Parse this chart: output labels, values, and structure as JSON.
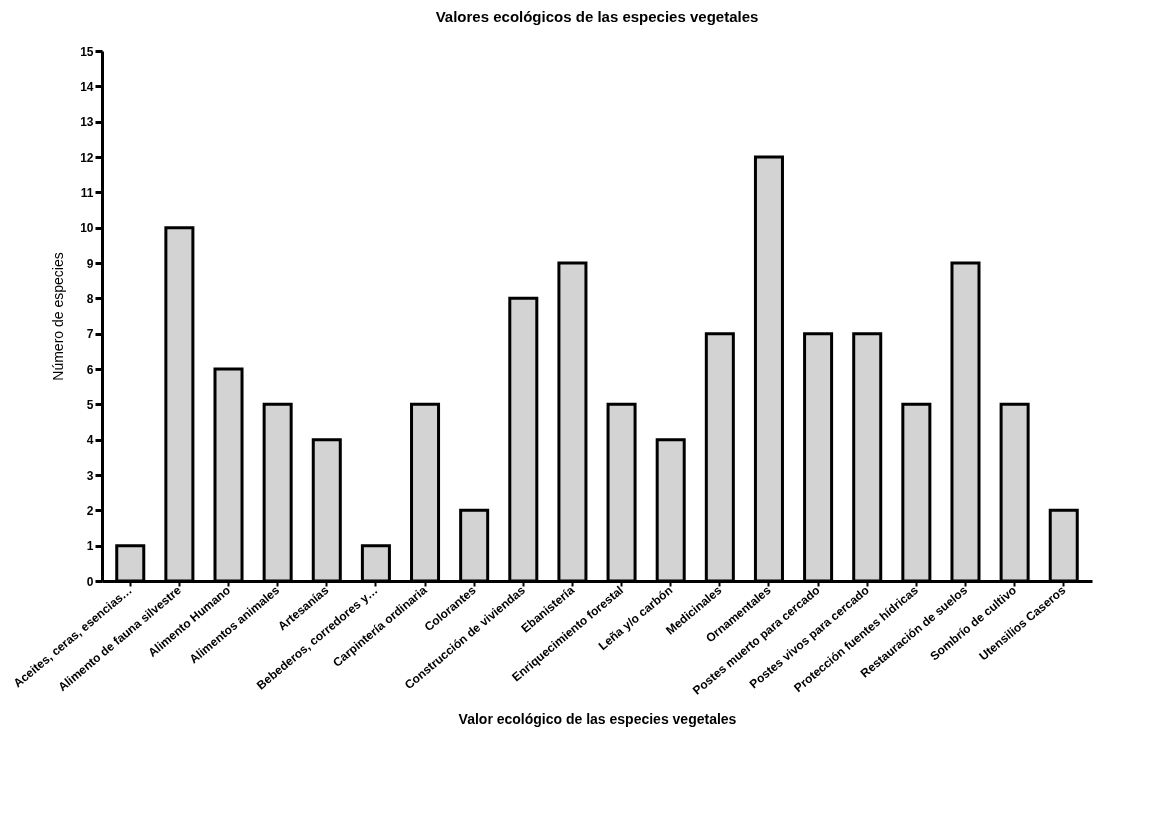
{
  "chart_data": {
    "type": "bar",
    "title": "Valores ecológicos de las especies vegetales",
    "xlabel": "Valor ecológico de las especies vegetales",
    "ylabel": "Número de especies",
    "categories": [
      "Aceites, ceras, esencias…",
      "Alimento de fauna silvestre",
      "Alimento Humano",
      "Alimentos animales",
      "Artesanías",
      "Bebederos, corredores y…",
      "Carpintería ordinaria",
      "Colorantes",
      "Construcción de viviendas",
      "Ebanistería",
      "Enriquecimiento forestal",
      "Leña y/o carbón",
      "Medicinales",
      "Ornamentales",
      "Postes muerto para cercado",
      "Postes vivos para cercado",
      "Protección fuentes hídricas",
      "Restauración de suelos",
      "Sombrío de cultivo",
      "Utensilios Caseros"
    ],
    "values": [
      1,
      10,
      6,
      5,
      4,
      1,
      5,
      2,
      8,
      9,
      5,
      4,
      7,
      12,
      7,
      7,
      5,
      9,
      5,
      2
    ],
    "color": "#d3d3d3",
    "ylim": [
      0,
      15
    ],
    "yticks": [
      0,
      1,
      2,
      3,
      4,
      5,
      6,
      7,
      8,
      9,
      10,
      11,
      12,
      13,
      14,
      15
    ],
    "grid": false
  }
}
